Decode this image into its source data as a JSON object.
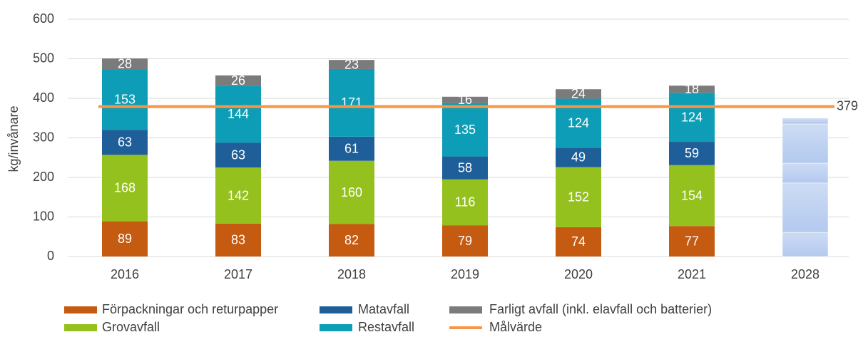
{
  "chart_data": {
    "type": "stacked_bar",
    "y_label": "kg/invånare",
    "categories": [
      "2016",
      "2017",
      "2018",
      "2019",
      "2020",
      "2021",
      "2028"
    ],
    "series": [
      {
        "name": "Förpackningar och returpapper",
        "color": "#c55a11",
        "values": [
          89,
          83,
          82,
          79,
          74,
          77,
          61
        ],
        "value_labels": [
          "89",
          "83",
          "82",
          "79",
          "74",
          "77",
          null
        ]
      },
      {
        "name": "Grovavfall",
        "color": "#95c11f",
        "values": [
          168,
          142,
          160,
          116,
          152,
          154,
          125
        ],
        "value_labels": [
          "168",
          "142",
          "160",
          "116",
          "152",
          "154",
          null
        ]
      },
      {
        "name": "Matavfall",
        "color": "#1f5f99",
        "values": [
          63,
          63,
          61,
          58,
          49,
          59,
          50
        ],
        "value_labels": [
          "63",
          "63",
          "61",
          "58",
          "49",
          "59",
          null
        ]
      },
      {
        "name": "Restavfall",
        "color": "#0e9db6",
        "values": [
          153,
          144,
          171,
          135,
          124,
          124,
          99
        ],
        "value_labels": [
          "153",
          "144",
          "171",
          "135",
          "124",
          "124",
          null
        ]
      },
      {
        "name": "Farligt avfall (inkl. elavfall och batterier)",
        "color": "#7b7b7b",
        "values": [
          28,
          26,
          23,
          16,
          24,
          18,
          15
        ],
        "value_labels": [
          "28",
          "26",
          "23",
          "16",
          "24",
          "18",
          null
        ]
      }
    ],
    "projection_color": "#b3c9ef",
    "target": {
      "name": "Målvärde",
      "color": "#f79646",
      "value": 379
    },
    "ylim": [
      0,
      600
    ],
    "yticks": [
      0,
      100,
      200,
      300,
      400,
      500,
      600
    ],
    "grid": true,
    "legend": "bottom"
  }
}
